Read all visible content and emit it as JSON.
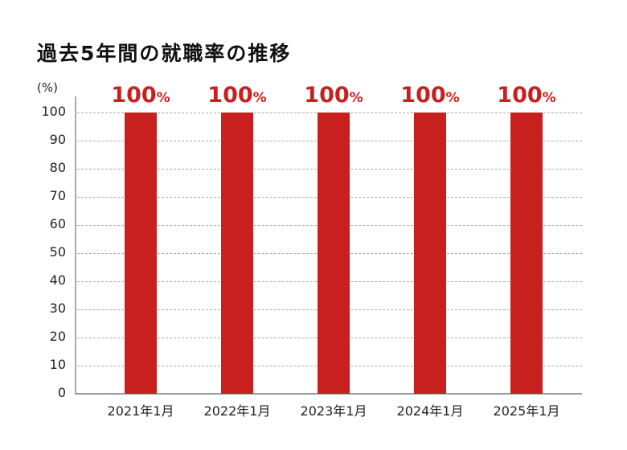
{
  "chart_data": {
    "type": "bar",
    "title": "過去5年間の就職率の推移",
    "xlabel": "",
    "ylabel": "(%)",
    "ylim": [
      0,
      100
    ],
    "yticks": [
      0,
      10,
      20,
      30,
      40,
      50,
      60,
      70,
      80,
      90,
      100
    ],
    "grid": true,
    "legend": null,
    "categories": [
      "2021年1月",
      "2022年1月",
      "2023年1月",
      "2024年1月",
      "2025年1月"
    ],
    "values": [
      100,
      100,
      100,
      100,
      100
    ],
    "data_labels": [
      {
        "value": "100",
        "suffix": "%"
      },
      {
        "value": "100",
        "suffix": "%"
      },
      {
        "value": "100",
        "suffix": "%"
      },
      {
        "value": "100",
        "suffix": "%"
      },
      {
        "value": "100",
        "suffix": "%"
      }
    ],
    "bar_color": "#c8201e"
  }
}
